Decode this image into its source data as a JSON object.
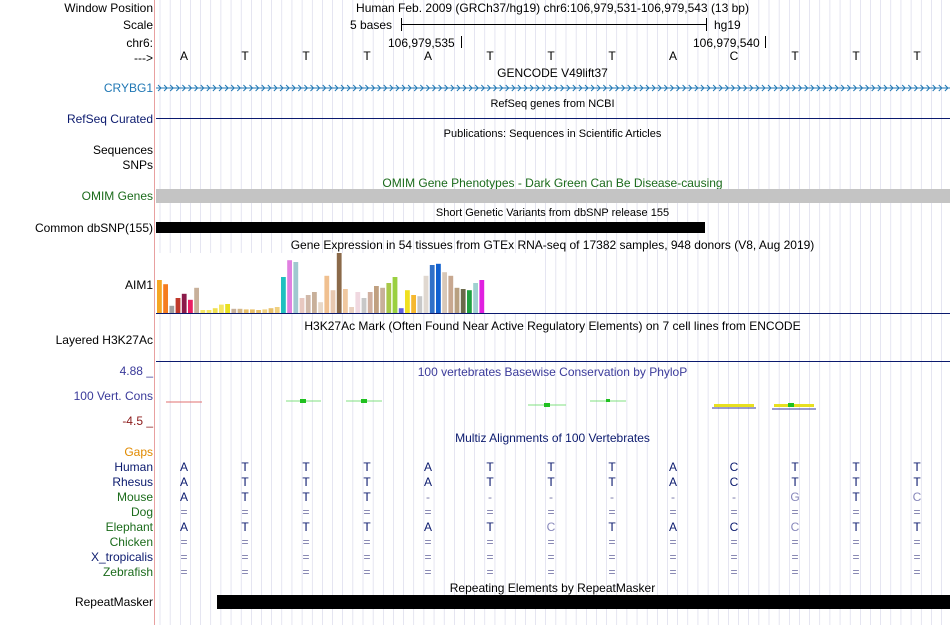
{
  "header": {
    "window_position_label": "Window Position",
    "scale_label": "Scale",
    "chrom_label": "chr6:",
    "strand_label": "--->",
    "position_text": "Human Feb. 2009 (GRCh37/hg19)   chr6:106,979,531-106,979,543 (13 bp)",
    "scale_text": "5 bases",
    "assembly": "hg19",
    "coord_left": "106,979,535",
    "coord_right": "106,979,540"
  },
  "bases": [
    "A",
    "T",
    "T",
    "T",
    "A",
    "T",
    "T",
    "T",
    "A",
    "C",
    "T",
    "T",
    "T"
  ],
  "tracks": {
    "gencode": {
      "title": "GENCODE V49lift37",
      "gene_label": "CRYBG1",
      "color": "#1f77b4"
    },
    "refseq": {
      "title": "RefSeq genes from NCBI",
      "label": "RefSeq Curated",
      "color": "#0b1a6e"
    },
    "publications": {
      "title": "Publications: Sequences in Scientific Articles",
      "label1": "Sequences",
      "label2": "SNPs"
    },
    "omim": {
      "title": "OMIM Gene Phenotypes - Dark Green Can Be Disease-causing",
      "label": "OMIM Genes",
      "color": "#1b6b1b"
    },
    "dbsnp": {
      "title": "Short Genetic Variants from dbSNP release 155",
      "label": "Common dbSNP(155)"
    },
    "gtex": {
      "title": "Gene Expression in 54 tissues from GTEx RNA-seq of 17382 samples, 948 donors (V8, Aug 2019)",
      "label": "AIM1",
      "bars": [
        {
          "v": 0.55,
          "c": "#f5a623"
        },
        {
          "v": 0.48,
          "c": "#f57c1f"
        },
        {
          "v": 0.12,
          "c": "#a0a0a0"
        },
        {
          "v": 0.25,
          "c": "#c0392b"
        },
        {
          "v": 0.32,
          "c": "#8b1a4a"
        },
        {
          "v": 0.22,
          "c": "#e91e63"
        },
        {
          "v": 0.42,
          "c": "#c8b09a"
        },
        {
          "v": 0.05,
          "c": "#f5e663"
        },
        {
          "v": 0.05,
          "c": "#f5e663"
        },
        {
          "v": 0.08,
          "c": "#f0e050"
        },
        {
          "v": 0.14,
          "c": "#f5e663"
        },
        {
          "v": 0.15,
          "c": "#e8e020"
        },
        {
          "v": 0.07,
          "c": "#c8b09a"
        },
        {
          "v": 0.07,
          "c": "#d4b88a"
        },
        {
          "v": 0.06,
          "c": "#e8c06a"
        },
        {
          "v": 0.06,
          "c": "#e8c06a"
        },
        {
          "v": 0.05,
          "c": "#e8c06a"
        },
        {
          "v": 0.06,
          "c": "#f0d080"
        },
        {
          "v": 0.08,
          "c": "#e8c06a"
        },
        {
          "v": 0.1,
          "c": "#f0d080"
        },
        {
          "v": 0.6,
          "c": "#20c0c0"
        },
        {
          "v": 0.88,
          "c": "#e080e0"
        },
        {
          "v": 0.85,
          "c": "#a0c8d0"
        },
        {
          "v": 0.25,
          "c": "#e8c8c0"
        },
        {
          "v": 0.3,
          "c": "#d0b8a8"
        },
        {
          "v": 0.35,
          "c": "#c8b09a"
        },
        {
          "v": 0.18,
          "c": "#e8d8c8"
        },
        {
          "v": 0.62,
          "c": "#f0c090"
        },
        {
          "v": 0.38,
          "c": "#e8c8b0"
        },
        {
          "v": 1.0,
          "c": "#8b6a4a"
        },
        {
          "v": 0.4,
          "c": "#f0c8a0"
        },
        {
          "v": 0.1,
          "c": "#e8d0c0"
        },
        {
          "v": 0.35,
          "c": "#f0d8e0"
        },
        {
          "v": 0.25,
          "c": "#c8c8c8"
        },
        {
          "v": 0.35,
          "c": "#d0b0a0"
        },
        {
          "v": 0.45,
          "c": "#c0a080"
        },
        {
          "v": 0.42,
          "c": "#c8b09a"
        },
        {
          "v": 0.5,
          "c": "#a8c848"
        },
        {
          "v": 0.6,
          "c": "#9ad040"
        },
        {
          "v": 0.08,
          "c": "#6060e0"
        },
        {
          "v": 0.38,
          "c": "#f0e020"
        },
        {
          "v": 0.3,
          "c": "#f5b830"
        },
        {
          "v": 0.28,
          "c": "#c8c8c8"
        },
        {
          "v": 0.62,
          "c": "#e0d8d0"
        },
        {
          "v": 0.8,
          "c": "#3070c8"
        },
        {
          "v": 0.82,
          "c": "#1060d0"
        },
        {
          "v": 0.68,
          "c": "#d8c8b8"
        },
        {
          "v": 0.62,
          "c": "#c8a890"
        },
        {
          "v": 0.42,
          "c": "#b8a080"
        },
        {
          "v": 0.4,
          "c": "#6a6a4a"
        },
        {
          "v": 0.38,
          "c": "#20a040"
        },
        {
          "v": 0.5,
          "c": "#a0d0d0"
        },
        {
          "v": 0.55,
          "c": "#e020e0"
        }
      ]
    },
    "h3k27ac": {
      "title": "H3K27Ac Mark (Often Found Near Active Regulatory Elements) on 7 cell lines from ENCODE",
      "label": "Layered H3K27Ac"
    },
    "phylop": {
      "title": "100 vertebrates Basewise Conservation by PhyloP",
      "label": "100 Vert. Cons",
      "max_label": "4.88 _",
      "min_label": "-4.5 _"
    },
    "multiz": {
      "title": "Multiz Alignments of 100 Vertebrates",
      "gaps_label": "Gaps",
      "species": [
        {
          "name": "Human",
          "color": "#0b1a6e",
          "seq": [
            "A",
            "T",
            "T",
            "T",
            "A",
            "T",
            "T",
            "T",
            "A",
            "C",
            "T",
            "T",
            "T"
          ]
        },
        {
          "name": "Rhesus",
          "color": "#0b1a6e",
          "seq": [
            "A",
            "T",
            "T",
            "T",
            "A",
            "T",
            "T",
            "T",
            "A",
            "C",
            "T",
            "T",
            "T"
          ]
        },
        {
          "name": "Mouse",
          "color": "#1b6b1b",
          "seq": [
            "A",
            "T",
            "T",
            "T",
            "-",
            "-",
            "-",
            "-",
            "-",
            "-",
            "G",
            "T",
            "C"
          ]
        },
        {
          "name": "Dog",
          "color": "#1b6b1b",
          "seq": [
            "=",
            "=",
            "=",
            "=",
            "=",
            "=",
            "=",
            "=",
            "=",
            "=",
            "=",
            "=",
            "="
          ]
        },
        {
          "name": "Elephant",
          "color": "#1b6b1b",
          "seq": [
            "A",
            "T",
            "T",
            "T",
            "A",
            "T",
            "C",
            "T",
            "A",
            "C",
            "C",
            "T",
            "T"
          ]
        },
        {
          "name": "Chicken",
          "color": "#1b6b1b",
          "seq": [
            "=",
            "=",
            "=",
            "=",
            "=",
            "=",
            "=",
            "=",
            "=",
            "=",
            "=",
            "=",
            "="
          ]
        },
        {
          "name": "X_tropicalis",
          "color": "#0b1a6e",
          "seq": [
            "=",
            "=",
            "=",
            "=",
            "=",
            "=",
            "=",
            "=",
            "=",
            "=",
            "=",
            "=",
            "="
          ]
        },
        {
          "name": "Zebrafish",
          "color": "#1b6b1b",
          "seq": [
            "=",
            "=",
            "=",
            "=",
            "=",
            "=",
            "=",
            "=",
            "=",
            "=",
            "=",
            "=",
            "="
          ]
        }
      ]
    },
    "repeatmasker": {
      "title": "Repeating Elements by RepeatMasker",
      "label": "RepeatMasker"
    }
  }
}
